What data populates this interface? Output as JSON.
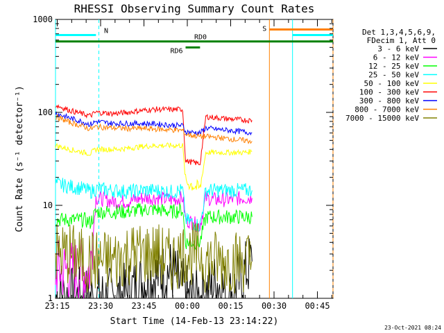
{
  "chart_data": {
    "type": "line",
    "title": "RHESSI Observing Summary Count Rates",
    "xlabel": "Start Time (14-Feb-13 23:14:22)",
    "ylabel": "Count Rate (s⁻¹ detector⁻¹)",
    "y_scale": "log",
    "ylim": [
      1,
      1000
    ],
    "y_ticks": [
      {
        "value": 1,
        "label": "1"
      },
      {
        "value": 10,
        "label": "10"
      },
      {
        "value": 100,
        "label": "100"
      },
      {
        "value": 1000,
        "label": "1000"
      }
    ],
    "x_range_minutes": [
      0,
      96
    ],
    "x_ticks": [
      {
        "minute": 0.6,
        "label": "23:15"
      },
      {
        "minute": 15.6,
        "label": "23:30"
      },
      {
        "minute": 30.6,
        "label": "23:45"
      },
      {
        "minute": 45.6,
        "label": "00:00"
      },
      {
        "minute": 60.6,
        "label": "00:15"
      },
      {
        "minute": 75.6,
        "label": "00:30"
      },
      {
        "minute": 90.6,
        "label": "00:45"
      }
    ],
    "legend_header": [
      "Det 1,3,4,5,6,9,",
      "FDecim 1, Att 0"
    ],
    "legend_position": "right",
    "series": [
      {
        "name": "3 - 6 keV",
        "color": "#000000",
        "x": [
          0,
          14,
          16,
          22,
          30,
          40,
          46,
          50,
          56,
          60,
          66,
          68
        ],
        "y": [
          1,
          1,
          1,
          1,
          1.5,
          2,
          1,
          1,
          1.5,
          1,
          2,
          2.5
        ]
      },
      {
        "name": "6 - 12 keV",
        "color": "#ff00ff",
        "x": [
          0,
          5,
          10,
          12,
          14,
          20,
          25,
          30,
          35,
          40,
          44,
          45,
          50,
          52,
          55,
          60,
          65,
          68
        ],
        "y": [
          2,
          2,
          2,
          2,
          12,
          11,
          11,
          12,
          12,
          11.5,
          12,
          7,
          6,
          12,
          11.5,
          11.5,
          12,
          12
        ]
      },
      {
        "name": "12 - 25 keV",
        "color": "#00ff00",
        "x": [
          0,
          5,
          10,
          12,
          14,
          20,
          25,
          30,
          35,
          40,
          44,
          45,
          50,
          52,
          55,
          60,
          65,
          68
        ],
        "y": [
          7,
          7,
          7,
          6.5,
          8.5,
          8.5,
          8.5,
          9,
          9,
          8.5,
          9,
          4,
          4,
          7.5,
          7.5,
          7.5,
          7.5,
          7.5
        ]
      },
      {
        "name": "25 - 50 keV",
        "color": "#00ffff",
        "x": [
          0,
          5,
          10,
          12,
          14,
          20,
          25,
          30,
          35,
          40,
          44,
          45,
          50,
          52,
          55,
          60,
          65,
          68
        ],
        "y": [
          17,
          16,
          15,
          14,
          15,
          14.5,
          14,
          14.5,
          14.5,
          14,
          14.5,
          7,
          6,
          14.5,
          14.5,
          14.5,
          14.5,
          14.5
        ]
      },
      {
        "name": "50 - 100 keV",
        "color": "#ffff00",
        "x": [
          0,
          5,
          10,
          12,
          14,
          20,
          25,
          30,
          35,
          40,
          44,
          45,
          50,
          52,
          55,
          60,
          65,
          68
        ],
        "y": [
          44,
          40,
          37,
          36,
          40,
          40,
          41,
          43,
          44,
          44,
          44,
          18,
          15,
          37,
          37,
          37,
          37,
          38
        ]
      },
      {
        "name": "100 - 300 keV",
        "color": "#ff0000",
        "x": [
          0,
          5,
          10,
          12,
          14,
          20,
          25,
          30,
          35,
          40,
          44,
          45,
          50,
          52,
          55,
          60,
          65,
          68
        ],
        "y": [
          120,
          105,
          95,
          92,
          100,
          97,
          100,
          105,
          108,
          107,
          108,
          30,
          28,
          90,
          88,
          85,
          83,
          82
        ]
      },
      {
        "name": "300 - 800 keV",
        "color": "#0000ff",
        "x": [
          0,
          5,
          10,
          12,
          14,
          20,
          25,
          30,
          35,
          40,
          44,
          45,
          50,
          52,
          55,
          60,
          65,
          68
        ],
        "y": [
          98,
          87,
          78,
          74,
          80,
          76,
          76,
          76,
          75,
          73,
          72,
          62,
          60,
          68,
          66,
          64,
          62,
          60
        ]
      },
      {
        "name": "800 - 7000 keV",
        "color": "#ff8000",
        "x": [
          0,
          5,
          10,
          12,
          14,
          20,
          25,
          30,
          35,
          40,
          44,
          45,
          50,
          52,
          55,
          60,
          65,
          68
        ],
        "y": [
          90,
          78,
          70,
          66,
          70,
          68,
          67,
          67,
          66,
          65,
          64,
          58,
          55,
          55,
          54,
          52,
          50,
          49
        ]
      },
      {
        "name": "7000 - 15000 keV",
        "color": "#808000",
        "x": [
          0,
          5,
          10,
          12,
          14,
          20,
          25,
          30,
          35,
          40,
          44,
          45,
          50,
          52,
          55,
          60,
          65,
          68
        ],
        "y": [
          3,
          3,
          2.5,
          2.5,
          2.5,
          2.5,
          3,
          3,
          3,
          2.5,
          3,
          3,
          3,
          2.5,
          2.5,
          2.5,
          2.5,
          2.5
        ]
      }
    ],
    "flag_bars": [
      {
        "label": "N",
        "color": "#00ffff",
        "x_start": 0,
        "x_end": 14,
        "y_level": 680
      },
      {
        "label": "",
        "color": "#00ffff",
        "x_start": 82,
        "x_end": 96,
        "y_level": 680
      },
      {
        "label": "S",
        "color": "#ff8000",
        "x_start": 74,
        "x_end": 96,
        "y_level": 780
      },
      {
        "label": "RD0",
        "color": "#008000",
        "x_start": 0,
        "x_end": 96,
        "y_level": 580
      },
      {
        "label": "RD6",
        "color": "#008000",
        "x_start": 45,
        "x_end": 50,
        "y_level": 500
      }
    ],
    "vertical_markers": [
      {
        "minute": 0,
        "color": "#00ffff",
        "style": "solid"
      },
      {
        "minute": 15,
        "color": "#00ffff",
        "style": "dashed"
      },
      {
        "minute": 74,
        "color": "#ff8000",
        "style": "solid"
      },
      {
        "minute": 82,
        "color": "#00ffff",
        "style": "solid"
      },
      {
        "minute": 96,
        "color": "#ff8000",
        "style": "dashed"
      }
    ],
    "grid": false
  },
  "timestamp": "23-Oct-2021 08:24"
}
